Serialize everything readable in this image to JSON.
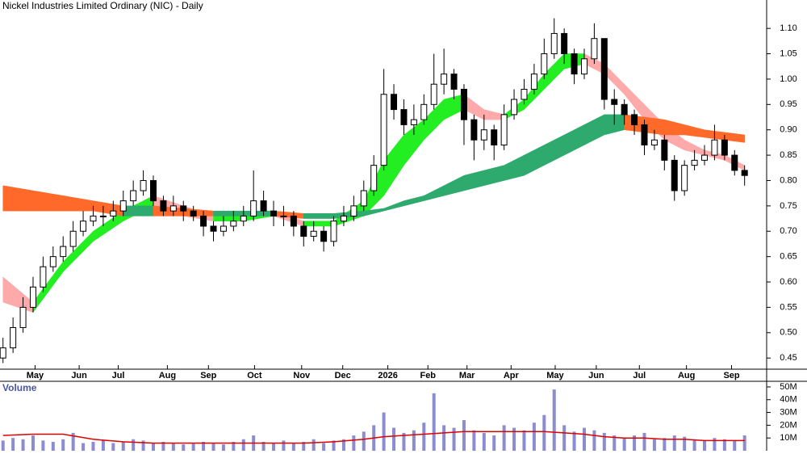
{
  "chart_data": [
    {
      "type": "candlestick",
      "title": "Nickel Industries Limited Ordinary (NIC) - Daily",
      "x": [
        0,
        1,
        2,
        3,
        4,
        5,
        6,
        7,
        8,
        9,
        10,
        11,
        12,
        13,
        14,
        15,
        16,
        17,
        18,
        19,
        20,
        21,
        22,
        23,
        24,
        25,
        26,
        27,
        28,
        29,
        30,
        31,
        32,
        33,
        34,
        35,
        36,
        37,
        38,
        39,
        40,
        41,
        42,
        43,
        44,
        45,
        46,
        47,
        48,
        49,
        50,
        51,
        52,
        53,
        54,
        55,
        56,
        57,
        58,
        59,
        60,
        61,
        62,
        63,
        64,
        65,
        66,
        67,
        68,
        69,
        70,
        71,
        72,
        73,
        74
      ],
      "open": [
        0.45,
        0.47,
        0.51,
        0.55,
        0.59,
        0.63,
        0.65,
        0.67,
        0.7,
        0.72,
        0.73,
        0.73,
        0.74,
        0.76,
        0.78,
        0.8,
        0.76,
        0.74,
        0.75,
        0.74,
        0.73,
        0.71,
        0.7,
        0.71,
        0.72,
        0.73,
        0.76,
        0.74,
        0.73,
        0.73,
        0.71,
        0.69,
        0.7,
        0.68,
        0.72,
        0.73,
        0.75,
        0.78,
        0.83,
        0.97,
        0.94,
        0.91,
        0.92,
        0.95,
        0.99,
        1.01,
        0.98,
        0.92,
        0.88,
        0.9,
        0.87,
        0.93,
        0.96,
        0.98,
        1.01,
        1.05,
        1.09,
        1.05,
        1.01,
        1.04,
        1.08,
        0.96,
        0.95,
        0.93,
        0.91,
        0.87,
        0.88,
        0.84,
        0.78,
        0.83,
        0.84,
        0.85,
        0.88,
        0.85,
        0.82
      ],
      "high": [
        0.49,
        0.53,
        0.57,
        0.61,
        0.65,
        0.67,
        0.69,
        0.72,
        0.74,
        0.75,
        0.75,
        0.76,
        0.78,
        0.8,
        0.82,
        0.81,
        0.77,
        0.77,
        0.76,
        0.75,
        0.74,
        0.72,
        0.73,
        0.74,
        0.75,
        0.82,
        0.78,
        0.76,
        0.75,
        0.74,
        0.72,
        0.72,
        0.71,
        0.73,
        0.75,
        0.77,
        0.8,
        0.85,
        1.02,
        0.99,
        0.96,
        0.95,
        0.97,
        1.05,
        1.06,
        1.02,
        0.99,
        0.93,
        0.93,
        0.91,
        0.95,
        0.98,
        1.0,
        1.03,
        1.08,
        1.12,
        1.1,
        1.06,
        1.06,
        1.11,
        1.08,
        0.98,
        0.96,
        0.94,
        0.92,
        0.9,
        0.89,
        0.85,
        0.84,
        0.86,
        0.87,
        0.91,
        0.89,
        0.86,
        0.83
      ],
      "low": [
        0.44,
        0.46,
        0.5,
        0.54,
        0.58,
        0.62,
        0.64,
        0.66,
        0.69,
        0.71,
        0.71,
        0.72,
        0.73,
        0.75,
        0.77,
        0.75,
        0.73,
        0.73,
        0.72,
        0.72,
        0.69,
        0.68,
        0.69,
        0.7,
        0.71,
        0.72,
        0.73,
        0.71,
        0.71,
        0.69,
        0.67,
        0.68,
        0.66,
        0.67,
        0.71,
        0.72,
        0.74,
        0.77,
        0.82,
        0.92,
        0.89,
        0.89,
        0.91,
        0.94,
        0.97,
        0.96,
        0.87,
        0.84,
        0.86,
        0.84,
        0.86,
        0.92,
        0.95,
        0.97,
        1.0,
        1.04,
        1.03,
        0.99,
        1.0,
        1.03,
        0.94,
        0.91,
        0.91,
        0.89,
        0.85,
        0.86,
        0.82,
        0.76,
        0.77,
        0.82,
        0.83,
        0.84,
        0.84,
        0.81,
        0.79
      ],
      "close": [
        0.47,
        0.51,
        0.55,
        0.59,
        0.63,
        0.65,
        0.67,
        0.7,
        0.72,
        0.73,
        0.73,
        0.74,
        0.76,
        0.78,
        0.8,
        0.76,
        0.74,
        0.75,
        0.74,
        0.73,
        0.71,
        0.7,
        0.71,
        0.72,
        0.73,
        0.76,
        0.74,
        0.73,
        0.73,
        0.71,
        0.69,
        0.7,
        0.68,
        0.72,
        0.73,
        0.75,
        0.78,
        0.83,
        0.97,
        0.94,
        0.91,
        0.92,
        0.95,
        0.99,
        1.01,
        0.98,
        0.92,
        0.88,
        0.9,
        0.87,
        0.93,
        0.96,
        0.98,
        1.01,
        1.05,
        1.09,
        1.05,
        1.01,
        1.04,
        1.08,
        0.96,
        0.95,
        0.93,
        0.91,
        0.87,
        0.88,
        0.84,
        0.78,
        0.83,
        0.84,
        0.85,
        0.88,
        0.85,
        0.82,
        0.81
      ],
      "up_color": "#ffffff",
      "down_color": "#000000",
      "ribbon_x": [
        0,
        3,
        6,
        9,
        12,
        15,
        18,
        21,
        24,
        27,
        30,
        33,
        36,
        38,
        40,
        42,
        44,
        46,
        48,
        50,
        52,
        54,
        56,
        58,
        60,
        62,
        64,
        66,
        68,
        70,
        72,
        74
      ],
      "ribbons": [
        {
          "upper": [
            0.61,
            0.56,
            0.64,
            0.7,
            0.74,
            0.77,
            0.75,
            0.73,
            0.73,
            0.74,
            0.72,
            0.72,
            0.76,
            0.84,
            0.89,
            0.92,
            0.96,
            0.97,
            0.94,
            0.93,
            0.96,
            1.01,
            1.05,
            1.05,
            1.03,
            0.99,
            0.95,
            0.91,
            0.88,
            0.86,
            0.85,
            0.83
          ],
          "lower": [
            0.56,
            0.54,
            0.62,
            0.68,
            0.72,
            0.75,
            0.73,
            0.72,
            0.72,
            0.73,
            0.71,
            0.71,
            0.73,
            0.77,
            0.83,
            0.88,
            0.92,
            0.94,
            0.92,
            0.92,
            0.94,
            0.98,
            1.02,
            1.03,
            1.01,
            0.97,
            0.92,
            0.88,
            0.86,
            0.85,
            0.84,
            0.82
          ],
          "up_color": "#22ee22",
          "down_color": "#ffaaaa"
        },
        {
          "upper": [
            0.79,
            0.78,
            0.77,
            0.76,
            0.75,
            0.75,
            0.745,
            0.74,
            0.74,
            0.74,
            0.735,
            0.735,
            0.74,
            0.745,
            0.76,
            0.77,
            0.79,
            0.81,
            0.82,
            0.83,
            0.85,
            0.87,
            0.89,
            0.91,
            0.93,
            0.93,
            0.925,
            0.92,
            0.91,
            0.9,
            0.895,
            0.89
          ],
          "lower": [
            0.74,
            0.74,
            0.74,
            0.74,
            0.73,
            0.73,
            0.73,
            0.73,
            0.73,
            0.73,
            0.725,
            0.725,
            0.73,
            0.74,
            0.75,
            0.76,
            0.77,
            0.78,
            0.79,
            0.8,
            0.81,
            0.83,
            0.85,
            0.87,
            0.89,
            0.9,
            0.895,
            0.89,
            0.89,
            0.885,
            0.88,
            0.875
          ],
          "up_color": "#2eaa6e",
          "down_color": "#ff6a2a"
        }
      ],
      "xlim": [
        -0.3,
        76.2
      ],
      "xticks": [
        {
          "value": 3.2,
          "label": "May"
        },
        {
          "value": 7.6,
          "label": "Jun"
        },
        {
          "value": 11.5,
          "label": "Jul"
        },
        {
          "value": 16.4,
          "label": "Aug"
        },
        {
          "value": 20.5,
          "label": "Sep"
        },
        {
          "value": 25.1,
          "label": "Oct"
        },
        {
          "value": 29.8,
          "label": "Nov"
        },
        {
          "value": 33.9,
          "label": "Dec"
        },
        {
          "value": 38.4,
          "label": "2026"
        },
        {
          "value": 42.4,
          "label": "Feb"
        },
        {
          "value": 46.3,
          "label": "Mar"
        },
        {
          "value": 50.7,
          "label": "Apr"
        },
        {
          "value": 55.1,
          "label": "May"
        },
        {
          "value": 59.2,
          "label": "Jun"
        },
        {
          "value": 63.5,
          "label": "Jul"
        },
        {
          "value": 68.2,
          "label": "Aug"
        },
        {
          "value": 72.7,
          "label": "Sep"
        }
      ],
      "ylim": [
        0.428,
        1.156
      ],
      "yticks": [
        0.45,
        {
          "value": 0.5,
          "label": "0.50"
        },
        0.55,
        {
          "value": 0.6,
          "label": "0.60"
        },
        0.65,
        {
          "value": 0.7,
          "label": "0.70"
        },
        0.75,
        {
          "value": 0.8,
          "label": "0.80"
        },
        0.85,
        {
          "value": 0.9,
          "label": "0.90"
        },
        0.95,
        {
          "value": 1.0,
          "label": "1.00"
        },
        1.05,
        {
          "value": 1.1,
          "label": "1.10"
        }
      ]
    },
    {
      "type": "bar",
      "title": "Volume",
      "values": [
        8,
        10,
        9,
        12,
        8,
        7,
        9,
        14,
        6,
        7,
        8,
        6,
        7,
        9,
        8,
        6,
        7,
        6,
        5,
        6,
        7,
        6,
        5,
        7,
        9,
        12,
        7,
        6,
        8,
        6,
        7,
        9,
        6,
        8,
        9,
        12,
        15,
        20,
        30,
        18,
        14,
        16,
        22,
        45,
        20,
        18,
        24,
        16,
        14,
        12,
        20,
        18,
        16,
        22,
        28,
        48,
        20,
        15,
        18,
        16,
        14,
        12,
        10,
        12,
        14,
        9,
        10,
        12,
        11,
        9,
        8,
        10,
        9,
        8,
        12
      ],
      "color": "#8c8cd0",
      "ma": [
        12,
        13,
        13,
        9,
        7,
        6,
        6,
        6,
        6,
        6,
        6,
        7,
        9,
        11,
        12,
        13,
        14,
        15,
        15,
        15,
        15,
        15,
        14,
        13,
        11,
        10,
        10,
        9,
        9,
        8,
        8,
        8
      ],
      "ma_color": "#dd0000",
      "ylim": [
        0,
        54.4
      ],
      "yticks": [
        {
          "value": 10,
          "label": "10M"
        },
        {
          "value": 20,
          "label": "20M"
        },
        {
          "value": 30,
          "label": "30M"
        },
        {
          "value": 40,
          "label": "40M"
        },
        {
          "value": 50,
          "label": "50M"
        }
      ]
    }
  ]
}
